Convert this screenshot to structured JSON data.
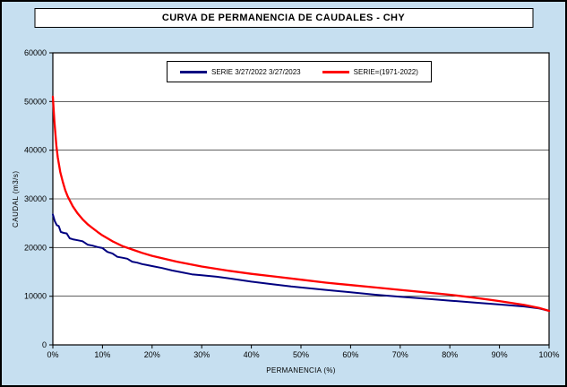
{
  "window": {
    "background_color": "#c6dff0",
    "plot_background_color": "#ffffff",
    "border_color": "#000000"
  },
  "chart_data": {
    "type": "line",
    "title": "CURVA DE PERMANENCIA DE CAUDALES - CHY",
    "xlabel": "PERMANENCIA (%)",
    "ylabel": "CAUDAL (m3/s)",
    "xlim": [
      0,
      100
    ],
    "ylim": [
      0,
      60000
    ],
    "grid": "horizontal",
    "legend_position": "top-center-inside",
    "x_ticks": [
      0,
      10,
      20,
      30,
      40,
      50,
      60,
      70,
      80,
      90,
      100
    ],
    "x_tick_labels": [
      "0%",
      "10%",
      "20%",
      "30%",
      "40%",
      "50%",
      "60%",
      "70%",
      "80%",
      "90%",
      "100%"
    ],
    "y_ticks": [
      0,
      10000,
      20000,
      30000,
      40000,
      50000,
      60000
    ],
    "y_tick_labels": [
      "0",
      "10000",
      "20000",
      "30000",
      "40000",
      "50000",
      "60000"
    ],
    "series": [
      {
        "name": "SERIE 3/27/2022 3/27/2023",
        "color": "#000080",
        "points": [
          [
            0,
            26800
          ],
          [
            0.4,
            25400
          ],
          [
            0.8,
            24600
          ],
          [
            1.2,
            24400
          ],
          [
            1.6,
            23200
          ],
          [
            2.2,
            23000
          ],
          [
            2.8,
            22900
          ],
          [
            3.4,
            21900
          ],
          [
            4,
            21700
          ],
          [
            5,
            21500
          ],
          [
            6,
            21300
          ],
          [
            7,
            20600
          ],
          [
            8,
            20400
          ],
          [
            9,
            20100
          ],
          [
            10,
            19900
          ],
          [
            11,
            19100
          ],
          [
            12,
            18800
          ],
          [
            13,
            18100
          ],
          [
            14,
            17900
          ],
          [
            15,
            17700
          ],
          [
            16,
            17100
          ],
          [
            17,
            16900
          ],
          [
            18,
            16600
          ],
          [
            19,
            16400
          ],
          [
            20,
            16200
          ],
          [
            22,
            15800
          ],
          [
            24,
            15300
          ],
          [
            26,
            14900
          ],
          [
            28,
            14500
          ],
          [
            30,
            14300
          ],
          [
            33,
            14000
          ],
          [
            36,
            13600
          ],
          [
            40,
            13000
          ],
          [
            44,
            12500
          ],
          [
            48,
            12000
          ],
          [
            50,
            11800
          ],
          [
            55,
            11300
          ],
          [
            60,
            10800
          ],
          [
            65,
            10300
          ],
          [
            70,
            9900
          ],
          [
            75,
            9500
          ],
          [
            80,
            9100
          ],
          [
            85,
            8700
          ],
          [
            90,
            8300
          ],
          [
            95,
            7900
          ],
          [
            98,
            7500
          ],
          [
            100,
            7000
          ]
        ]
      },
      {
        "name": "SERIE=(1971-2022)",
        "color": "#ff0000",
        "points": [
          [
            0,
            51000
          ],
          [
            0.3,
            46000
          ],
          [
            0.7,
            41000
          ],
          [
            1,
            38500
          ],
          [
            1.5,
            35500
          ],
          [
            2,
            33500
          ],
          [
            2.5,
            31800
          ],
          [
            3,
            30500
          ],
          [
            4,
            28500
          ],
          [
            5,
            27000
          ],
          [
            6,
            25800
          ],
          [
            7,
            24800
          ],
          [
            8,
            24000
          ],
          [
            9,
            23200
          ],
          [
            10,
            22500
          ],
          [
            12,
            21300
          ],
          [
            14,
            20300
          ],
          [
            16,
            19600
          ],
          [
            18,
            18900
          ],
          [
            20,
            18300
          ],
          [
            25,
            17100
          ],
          [
            30,
            16100
          ],
          [
            35,
            15300
          ],
          [
            40,
            14600
          ],
          [
            45,
            14000
          ],
          [
            50,
            13400
          ],
          [
            55,
            12800
          ],
          [
            60,
            12300
          ],
          [
            65,
            11800
          ],
          [
            70,
            11300
          ],
          [
            75,
            10800
          ],
          [
            80,
            10300
          ],
          [
            85,
            9700
          ],
          [
            90,
            9000
          ],
          [
            95,
            8200
          ],
          [
            98,
            7600
          ],
          [
            100,
            7000
          ]
        ]
      }
    ]
  }
}
